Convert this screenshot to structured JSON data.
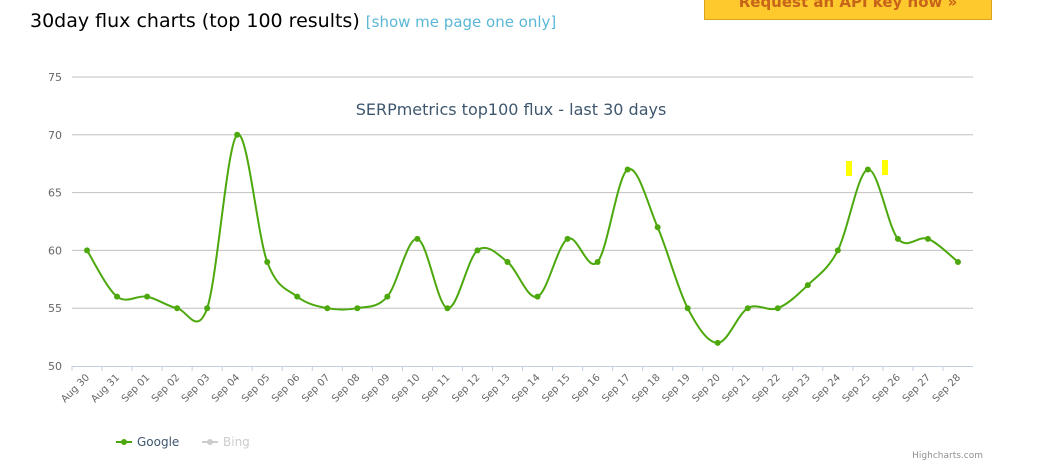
{
  "header": {
    "title": "30day flux charts (top 100 results)",
    "link": "[show me page one only]",
    "button": "Request an API key now »"
  },
  "chart_data": {
    "type": "line",
    "title": "SERPmetrics top100 flux - last 30 days",
    "credits": "Highcharts.com",
    "categories": [
      "Aug 30",
      "Aug 31",
      "Sep 01",
      "Sep 02",
      "Sep 03",
      "Sep 04",
      "Sep 05",
      "Sep 06",
      "Sep 07",
      "Sep 08",
      "Sep 09",
      "Sep 10",
      "Sep 11",
      "Sep 12",
      "Sep 13",
      "Sep 14",
      "Sep 15",
      "Sep 16",
      "Sep 17",
      "Sep 18",
      "Sep 19",
      "Sep 20",
      "Sep 21",
      "Sep 22",
      "Sep 23",
      "Sep 24",
      "Sep 25",
      "Sep 26",
      "Sep 27",
      "Sep 28"
    ],
    "series": [
      {
        "name": "Google",
        "color": "#4ca80c",
        "visible": true,
        "values": [
          60,
          56,
          56,
          55,
          55,
          70,
          59,
          56,
          55,
          55,
          56,
          61,
          55,
          60,
          59,
          56,
          61,
          59,
          67,
          62,
          55,
          52,
          55,
          55,
          57,
          60,
          67,
          61,
          61,
          59
        ]
      },
      {
        "name": "Bing",
        "color": "#cccccc",
        "visible": false,
        "values": [
          null,
          null,
          null,
          null,
          null,
          null,
          null,
          null,
          null,
          null,
          null,
          null,
          null,
          null,
          null,
          null,
          null,
          null,
          null,
          null,
          null,
          null,
          null,
          null,
          null,
          null,
          null,
          null,
          null,
          null
        ]
      }
    ],
    "ylim": [
      50,
      75
    ],
    "yticks": [
      50,
      55,
      60,
      65,
      70,
      75
    ],
    "grid": true,
    "smooth": true
  }
}
